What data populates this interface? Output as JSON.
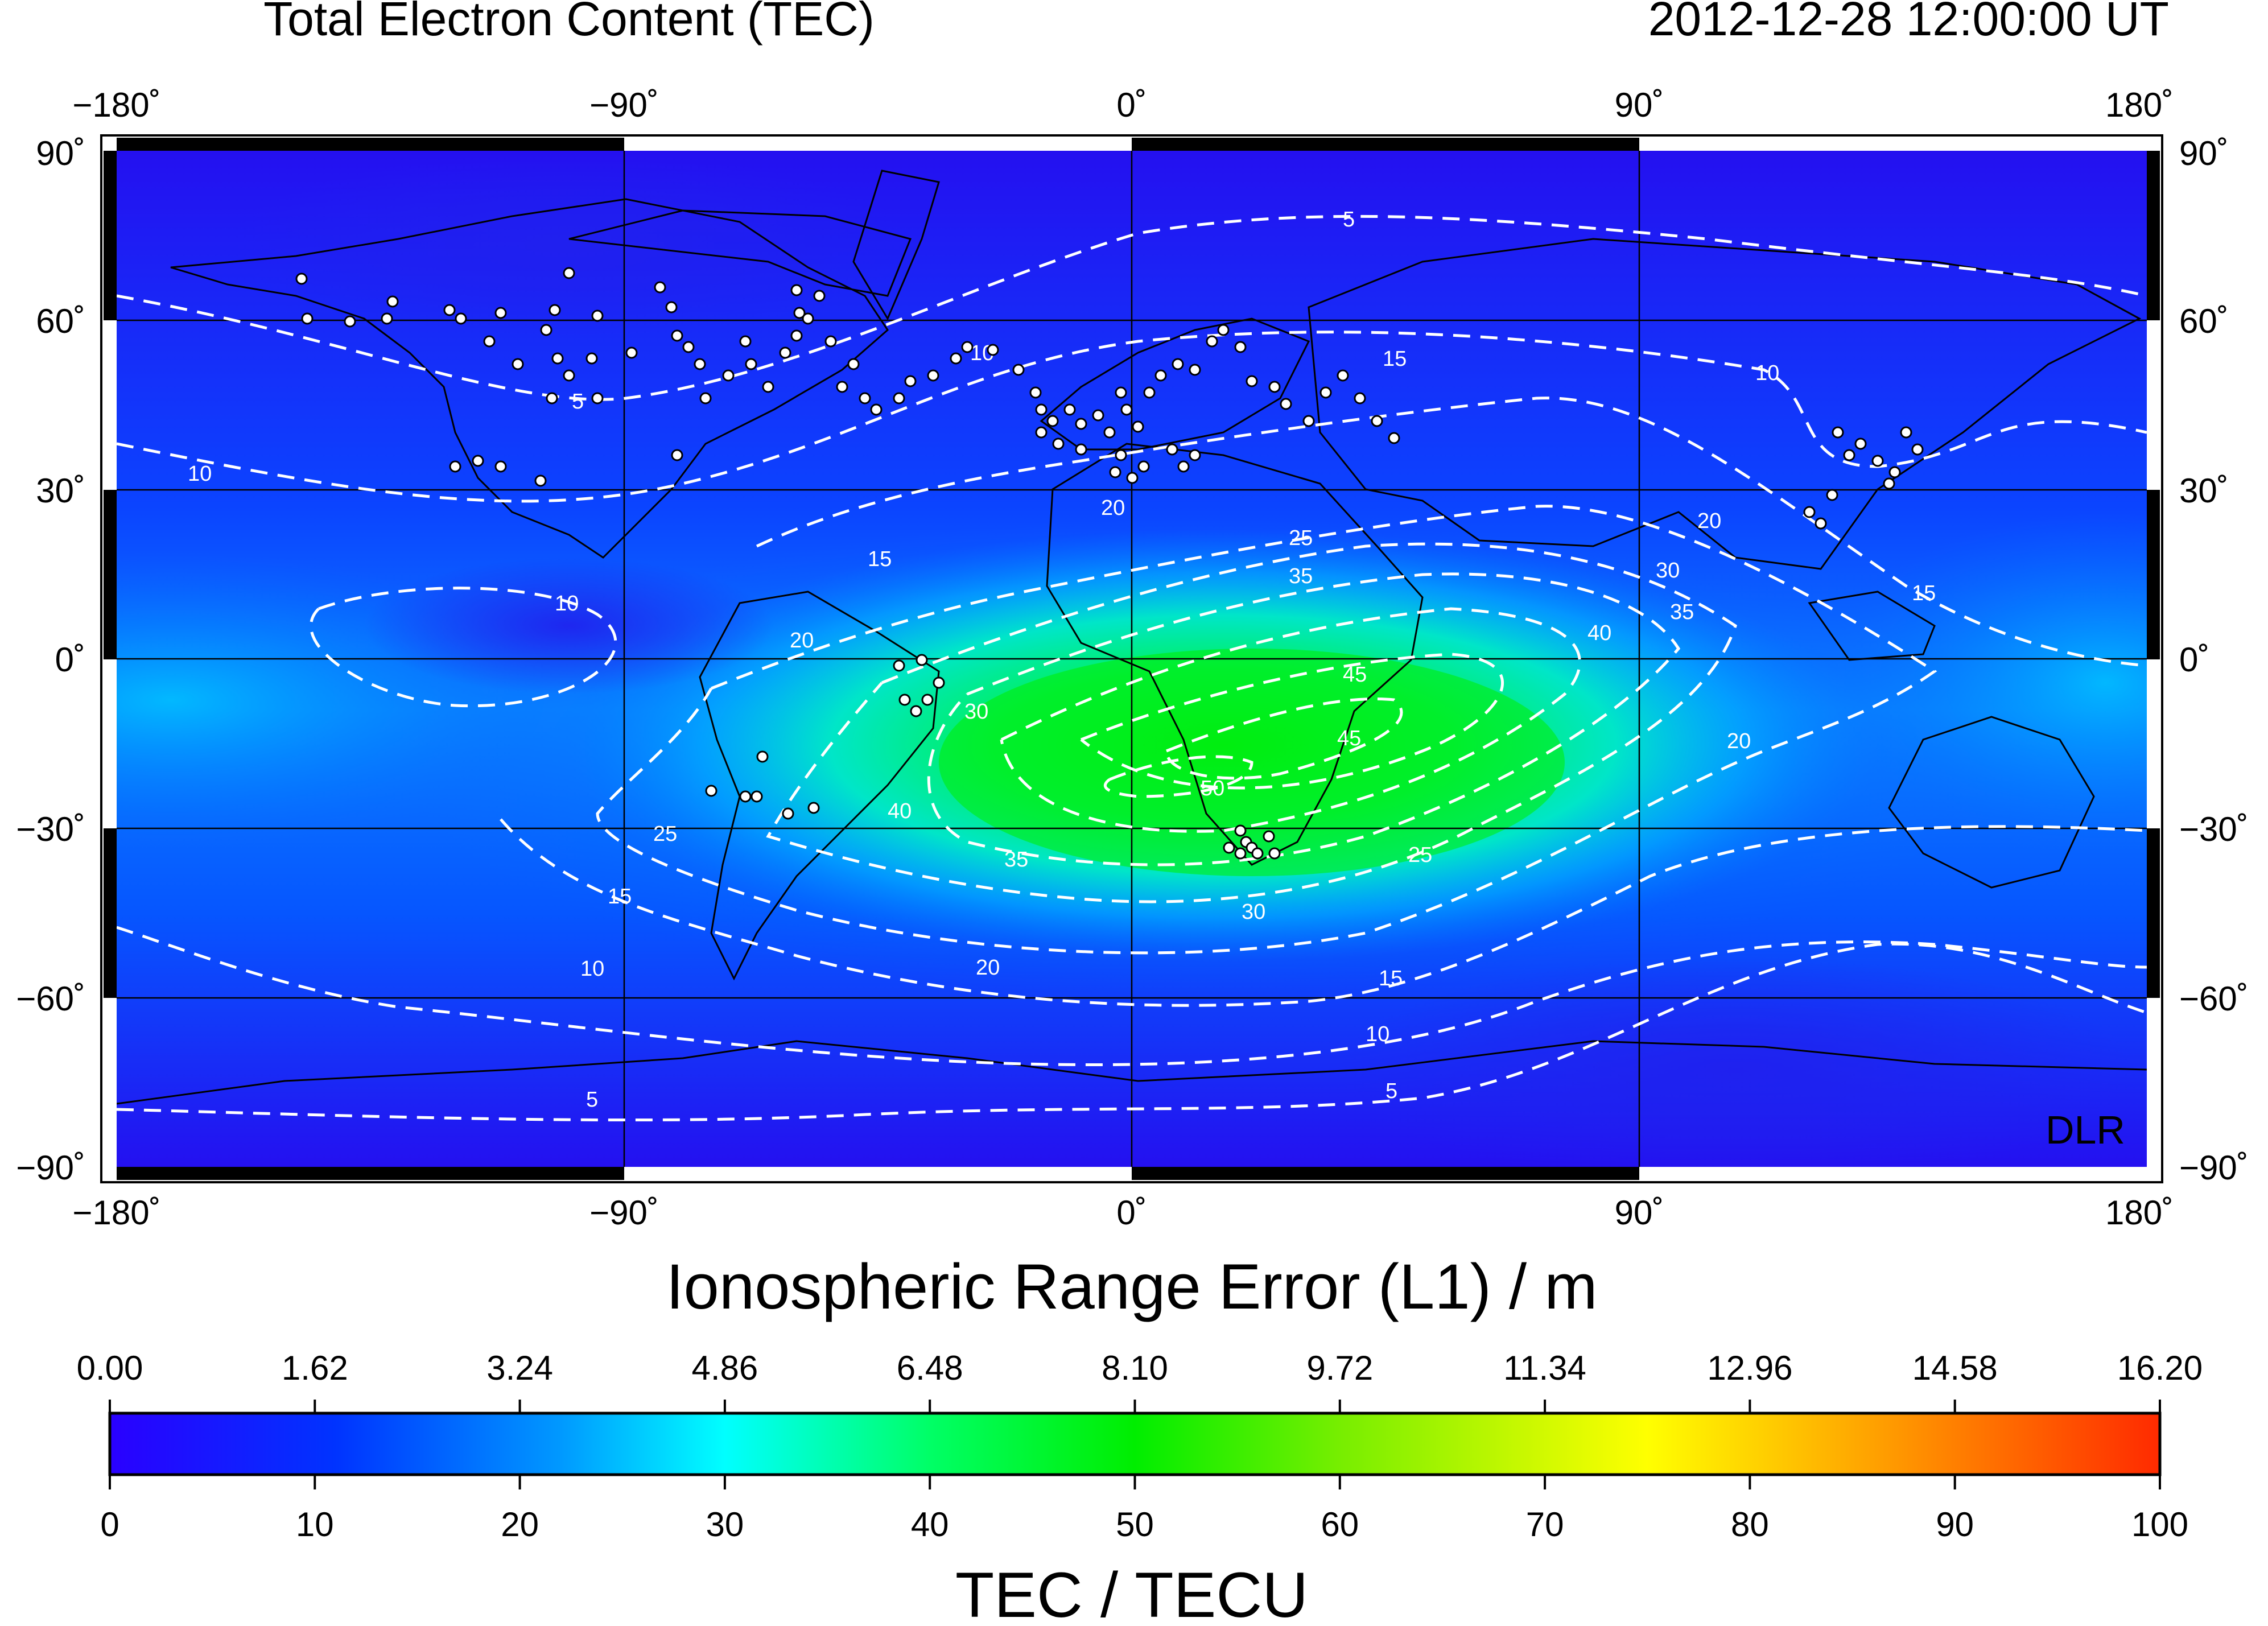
{
  "header": {
    "title": "Total Electron Content (TEC)",
    "timestamp": "2012-12-28  12:00:00 UT"
  },
  "map": {
    "lon_labels": [
      "−180˚",
      "−90˚",
      "0˚",
      "90˚",
      "180˚"
    ],
    "lat_labels": [
      "90˚",
      "60˚",
      "30˚",
      "0˚",
      "−30˚",
      "−60˚",
      "−90˚"
    ],
    "watermark": "DLR",
    "contour_levels": [
      5,
      10,
      15,
      20,
      25,
      30,
      35,
      40,
      45,
      50
    ],
    "contour_color": "#ffffff",
    "station_marker_color": "#ffffff"
  },
  "range_error_bar": {
    "title": "Ionospheric Range Error (L1) / m",
    "ticks": [
      "0.00",
      "1.62",
      "3.24",
      "4.86",
      "6.48",
      "8.10",
      "9.72",
      "11.34",
      "12.96",
      "14.58",
      "16.20"
    ]
  },
  "tec_bar": {
    "title": "TEC / TECU",
    "ticks": [
      "0",
      "10",
      "20",
      "30",
      "40",
      "50",
      "60",
      "70",
      "80",
      "90",
      "100"
    ],
    "colors": [
      "#2a00ff",
      "#0033ff",
      "#0099ff",
      "#00ffff",
      "#00ff66",
      "#00ee00",
      "#77ee00",
      "#ffff00",
      "#ff9900",
      "#ff2a00"
    ]
  }
}
